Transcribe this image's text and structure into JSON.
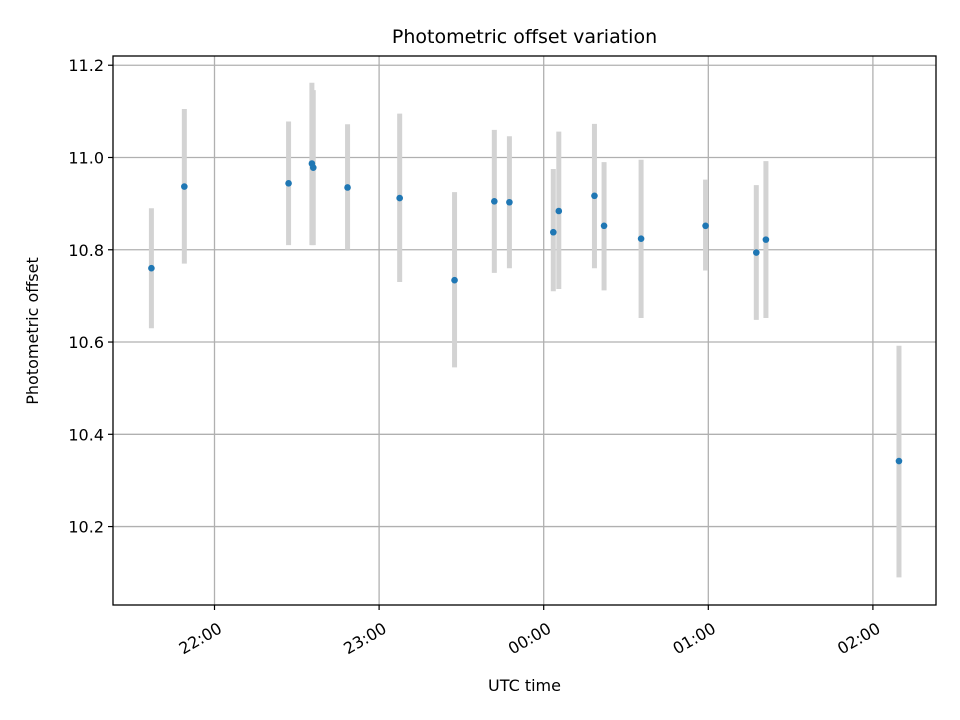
{
  "chart_data": {
    "type": "scatter",
    "title": "Photometric offset variation",
    "xlabel": "UTC time",
    "ylabel": "Photometric offset",
    "x_tick_labels": [
      "22:00",
      "23:00",
      "00:00",
      "01:00",
      "02:00"
    ],
    "x_tick_values": [
      -120,
      -60,
      0,
      60,
      120
    ],
    "y_tick_values": [
      10.2,
      10.4,
      10.6,
      10.8,
      11.0,
      11.2
    ],
    "y_tick_labels": [
      "10.2",
      "10.4",
      "10.6",
      "10.8",
      "11.0",
      "11.2"
    ],
    "xlim": [
      -157,
      143
    ],
    "ylim": [
      10.03,
      11.22
    ],
    "grid": true,
    "colors": {
      "points": "#1f77b4",
      "error_bars": "#d3d3d3",
      "grid": "#b0b0b0"
    },
    "points": [
      {
        "x": -143,
        "y": 10.76,
        "ylo": 10.63,
        "yhi": 10.89
      },
      {
        "x": -131,
        "y": 10.937,
        "ylo": 10.77,
        "yhi": 11.105
      },
      {
        "x": -93,
        "y": 10.944,
        "ylo": 10.81,
        "yhi": 11.078
      },
      {
        "x": -84.5,
        "y": 10.987,
        "ylo": 10.81,
        "yhi": 11.162
      },
      {
        "x": -84,
        "y": 10.978,
        "ylo": 10.81,
        "yhi": 11.146
      },
      {
        "x": -71.5,
        "y": 10.935,
        "ylo": 10.8,
        "yhi": 11.072
      },
      {
        "x": -52.5,
        "y": 10.912,
        "ylo": 10.73,
        "yhi": 11.095
      },
      {
        "x": -32.5,
        "y": 10.734,
        "ylo": 10.545,
        "yhi": 10.925
      },
      {
        "x": -18,
        "y": 10.905,
        "ylo": 10.75,
        "yhi": 11.06
      },
      {
        "x": -12.5,
        "y": 10.903,
        "ylo": 10.76,
        "yhi": 11.046
      },
      {
        "x": 3.5,
        "y": 10.838,
        "ylo": 10.71,
        "yhi": 10.975
      },
      {
        "x": 5.5,
        "y": 10.884,
        "ylo": 10.715,
        "yhi": 11.056
      },
      {
        "x": 18.5,
        "y": 10.917,
        "ylo": 10.76,
        "yhi": 11.073
      },
      {
        "x": 22,
        "y": 10.852,
        "ylo": 10.712,
        "yhi": 10.99
      },
      {
        "x": 35.5,
        "y": 10.824,
        "ylo": 10.652,
        "yhi": 10.995
      },
      {
        "x": 59,
        "y": 10.852,
        "ylo": 10.755,
        "yhi": 10.952
      },
      {
        "x": 77.5,
        "y": 10.794,
        "ylo": 10.648,
        "yhi": 10.94
      },
      {
        "x": 81,
        "y": 10.822,
        "ylo": 10.652,
        "yhi": 10.992
      },
      {
        "x": 129.5,
        "y": 10.342,
        "ylo": 10.09,
        "yhi": 10.592
      }
    ]
  }
}
